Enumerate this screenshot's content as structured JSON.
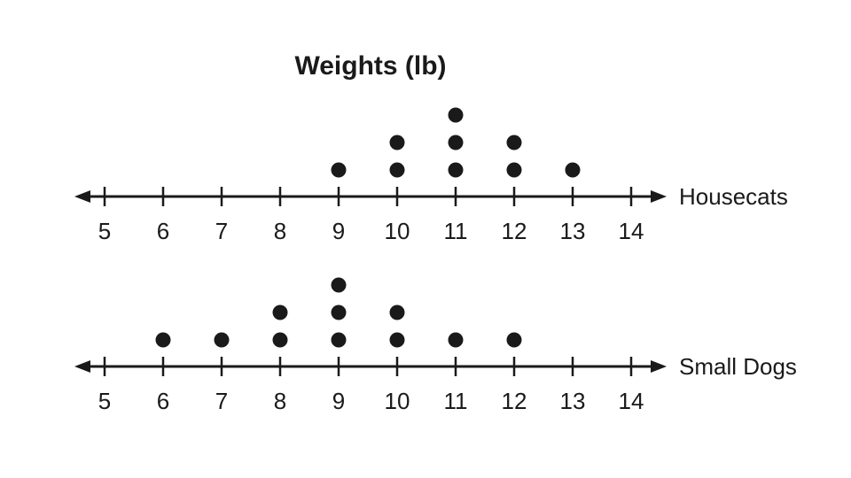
{
  "chart_data": {
    "type": "scatter",
    "subtype": "dot-plot",
    "title": "Weights (lb)",
    "x": [
      5,
      6,
      7,
      8,
      9,
      10,
      11,
      12,
      13,
      14
    ],
    "xlim": [
      5,
      14
    ],
    "series": [
      {
        "name": "Housecats",
        "counts": [
          0,
          0,
          0,
          0,
          1,
          2,
          3,
          2,
          1,
          0
        ]
      },
      {
        "name": "Small Dogs",
        "counts": [
          0,
          1,
          1,
          2,
          3,
          2,
          1,
          1,
          0,
          0
        ]
      }
    ],
    "grid": false,
    "legend": "none",
    "colors": {
      "ink": "#1a1a1a"
    }
  }
}
